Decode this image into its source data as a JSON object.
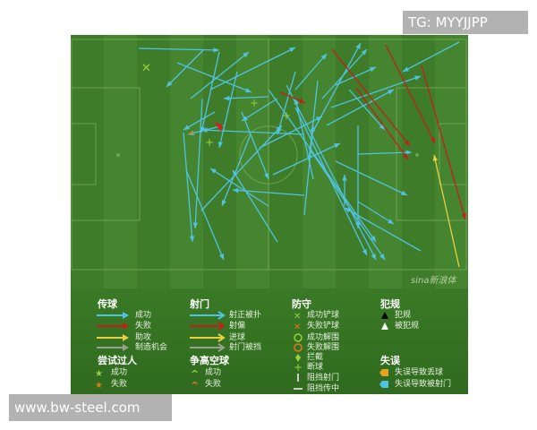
{
  "watermarks": {
    "top_right": "TG: MYYJJPP",
    "bottom_left": "www.bw-steel.com",
    "sina_logo": "sina新浪体"
  },
  "colors": {
    "pass_success": "#4fc3e0",
    "pass_fail": "#c0201a",
    "assist": "#e8d040",
    "chance": "#9aa090",
    "pitch": "#3f7a28"
  },
  "legend": {
    "passing": {
      "title": "传球",
      "items": [
        "成功",
        "失败",
        "助攻",
        "制造机会"
      ]
    },
    "shots": {
      "title": "射门",
      "items": [
        "射正被扑",
        "射偏",
        "进球",
        "射门被挡"
      ]
    },
    "defence": {
      "title": "防守",
      "items": [
        "成功铲球",
        "失败铲球",
        "成功解围",
        "失败解围",
        "拦截",
        "断球",
        "阻挡射门",
        "阻挡传中"
      ]
    },
    "fouls": {
      "title": "犯规",
      "items": [
        "犯规",
        "被犯规"
      ]
    },
    "dribbles": {
      "title": "尝试过人",
      "items": [
        "成功",
        "失败"
      ]
    },
    "aerials": {
      "title": "争高空球",
      "items": [
        "成功",
        "失败"
      ]
    },
    "errors": {
      "title": "失误",
      "items": [
        "失误导致丢球",
        "失误导致被射门"
      ]
    }
  }
}
